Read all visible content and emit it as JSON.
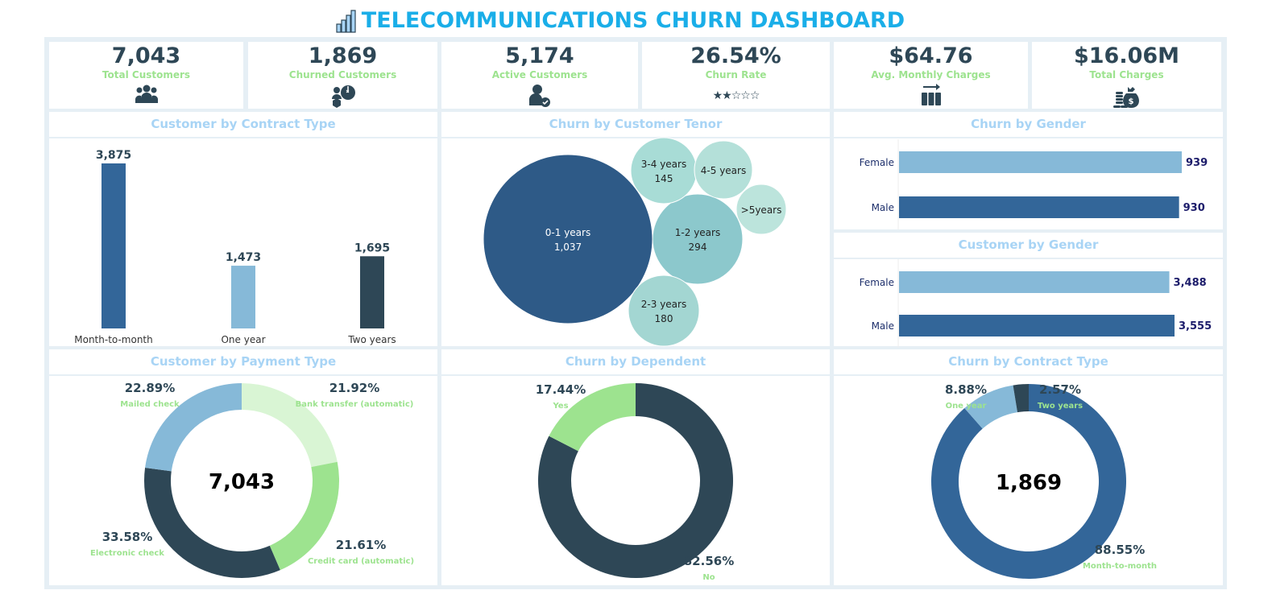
{
  "header": {
    "title": "TELECOMMUNICATIONS CHURN DASHBOARD"
  },
  "kpis": [
    {
      "value": "7,043",
      "label": "Total Customers",
      "icon": "users-icon"
    },
    {
      "value": "1,869",
      "label": "Churned Customers",
      "icon": "churn-pie-icon"
    },
    {
      "value": "5,174",
      "label": "Active Customers",
      "icon": "user-check-icon"
    },
    {
      "value": "26.54%",
      "label": "Churn Rate",
      "icon": "star-rating-icon",
      "stars": 2
    },
    {
      "value": "$64.76",
      "label": "Avg. Monthly Charges",
      "icon": "columns-arrow-icon"
    },
    {
      "value": "$16.06M",
      "label": "Total Charges",
      "icon": "money-bag-icon"
    }
  ],
  "colors": {
    "dark": "#2e4756",
    "blue": "#336699",
    "lightblue": "#86b9d8",
    "green": "#9de38f",
    "lightgreen": "#d9f5d4",
    "teal": "#8cc8cc",
    "paleteal": "#b4e0d9"
  },
  "chart_data": [
    {
      "id": "contract",
      "type": "bar",
      "title": "Customer by Contract Type",
      "categories": [
        "Month-to-month",
        "One year",
        "Two years"
      ],
      "values": [
        3875,
        1473,
        1695
      ],
      "labels": [
        "3,875",
        "1,473",
        "1,695"
      ]
    },
    {
      "id": "tenor",
      "type": "bubble",
      "title": "Churn by Customer Tenor",
      "categories": [
        "0-1 years",
        "1-2 years",
        "2-3 years",
        "3-4 years",
        "4-5 years",
        ">5years"
      ],
      "values": [
        1037,
        294,
        180,
        145,
        null,
        null
      ],
      "labels": [
        "1,037",
        "294",
        "180",
        "145",
        "",
        ""
      ]
    },
    {
      "id": "churn_gender",
      "type": "bar",
      "orientation": "horizontal",
      "title": "Churn by Gender",
      "categories": [
        "Female",
        "Male"
      ],
      "values": [
        939,
        930
      ],
      "labels": [
        "939",
        "930"
      ]
    },
    {
      "id": "cust_gender",
      "type": "bar",
      "orientation": "horizontal",
      "title": "Customer by Gender",
      "categories": [
        "Female",
        "Male"
      ],
      "values": [
        3488,
        3555
      ],
      "labels": [
        "3,488",
        "3,555"
      ]
    },
    {
      "id": "payment",
      "type": "pie",
      "donut": true,
      "title": "Customer by Payment Type",
      "center": "7,043",
      "categories": [
        "Bank transfer (automatic)",
        "Credit card (automatic)",
        "Electronic check",
        "Mailed check"
      ],
      "values": [
        21.92,
        21.61,
        33.58,
        22.89
      ],
      "labels": [
        "21.92%",
        "21.61%",
        "33.58%",
        "22.89%"
      ]
    },
    {
      "id": "dependent",
      "type": "pie",
      "donut": true,
      "title": "Churn by Dependent",
      "center": "",
      "categories": [
        "No",
        "Yes"
      ],
      "values": [
        82.56,
        17.44
      ],
      "labels": [
        "82.56%",
        "17.44%"
      ]
    },
    {
      "id": "churn_contract",
      "type": "pie",
      "donut": true,
      "title": "Churn by Contract Type",
      "center": "1,869",
      "categories": [
        "Month-to-month",
        "One year",
        "Two years"
      ],
      "values": [
        88.55,
        8.88,
        2.57
      ],
      "labels": [
        "88.55%",
        "8.88%",
        "2.57%"
      ]
    }
  ]
}
